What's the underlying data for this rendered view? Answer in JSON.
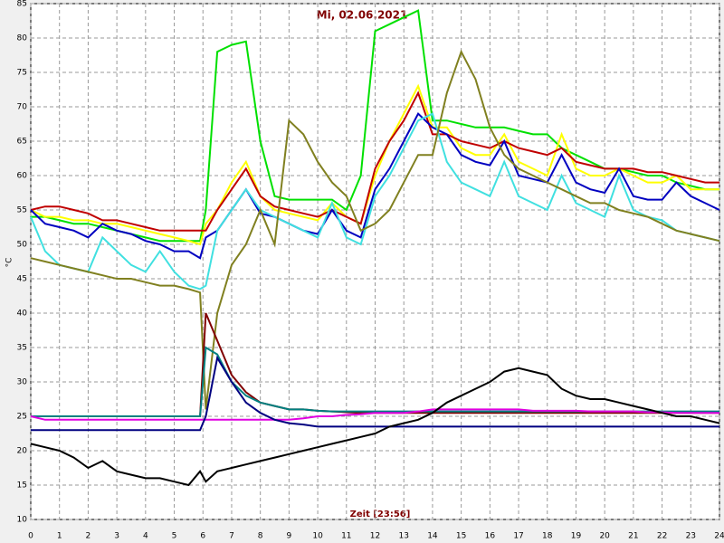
{
  "chart_data": {
    "type": "line",
    "title": "Mi, 02.06.2021",
    "x_label": "Zeit [23:56]",
    "y_label": "°C",
    "x": [
      0,
      0.5,
      1,
      1.5,
      2,
      2.5,
      3,
      3.5,
      4,
      4.5,
      5,
      5.5,
      5.9,
      6.1,
      6.5,
      7,
      7.5,
      8,
      8.5,
      9,
      9.5,
      10,
      10.5,
      11,
      11.5,
      12,
      12.5,
      13,
      13.5,
      14,
      14.5,
      15,
      15.5,
      16,
      16.5,
      17,
      17.5,
      18,
      18.5,
      19,
      19.5,
      20,
      20.5,
      21,
      21.5,
      22,
      22.5,
      23,
      23.5,
      24
    ],
    "xlim": [
      0,
      24
    ],
    "xticks": [
      0,
      1,
      2,
      3,
      4,
      5,
      6,
      7,
      8,
      9,
      10,
      11,
      12,
      13,
      14,
      15,
      16,
      17,
      18,
      19,
      20,
      21,
      22,
      23,
      24
    ],
    "ylim": [
      10,
      85
    ],
    "yticks": [
      10,
      15,
      20,
      25,
      30,
      35,
      40,
      45,
      50,
      55,
      60,
      65,
      70,
      75,
      80,
      85
    ],
    "grid": true,
    "series": [
      {
        "color": "#00e000",
        "values": [
          54,
          54,
          53.5,
          53,
          53,
          52.5,
          52,
          51.5,
          51,
          50.5,
          50.5,
          50.5,
          50.5,
          55,
          78,
          79,
          79.5,
          65,
          57,
          56.5,
          56.5,
          56.5,
          56.5,
          55,
          60,
          81,
          82,
          83,
          84,
          68,
          68,
          67.5,
          67,
          67,
          67,
          66.5,
          66,
          66,
          64,
          63,
          62,
          61,
          61,
          60.5,
          60,
          60,
          59,
          58.5,
          58,
          58
        ]
      },
      {
        "color": "#ffff00",
        "values": [
          55,
          54,
          54,
          53.5,
          53.5,
          53,
          53,
          52.5,
          52,
          51.5,
          51,
          50.5,
          50,
          53,
          55,
          59,
          62,
          57,
          55,
          54.5,
          54,
          53.5,
          56,
          54,
          53,
          60,
          65,
          69,
          73,
          67,
          67,
          64,
          63,
          63,
          66,
          62,
          61,
          60,
          66,
          61,
          60,
          60,
          61,
          60,
          59,
          59,
          60,
          58,
          58,
          58
        ]
      },
      {
        "color": "#c00000",
        "values": [
          55,
          55.5,
          55.5,
          55,
          54.5,
          53.5,
          53.5,
          53,
          52.5,
          52,
          52,
          52,
          52,
          52,
          55,
          58,
          61,
          57,
          55.5,
          55,
          54.5,
          54,
          55,
          54,
          53,
          61,
          65,
          68,
          72,
          66,
          66,
          65,
          64.5,
          64,
          65,
          64,
          63.5,
          63,
          64,
          62,
          61.5,
          61,
          61,
          61,
          60.5,
          60.5,
          60,
          59.5,
          59,
          59
        ]
      },
      {
        "color": "#0000c0",
        "values": [
          55,
          53,
          52.5,
          52,
          51,
          53,
          52,
          51.5,
          50.5,
          50,
          49,
          49,
          48,
          51,
          52,
          55,
          58,
          54.5,
          54,
          53,
          52,
          51.5,
          55,
          52,
          51,
          58,
          61,
          65,
          69,
          67,
          66,
          63,
          62,
          61.5,
          65,
          60,
          59.5,
          59,
          63,
          59,
          58,
          57.5,
          61,
          57,
          56.5,
          56.5,
          59,
          57,
          56,
          55
        ]
      },
      {
        "color": "#40e0e0",
        "values": [
          54,
          49,
          47,
          46.5,
          46,
          51,
          49,
          47,
          46,
          49,
          46,
          44,
          43.5,
          44,
          52,
          55,
          58,
          55,
          54,
          53,
          52,
          51,
          56,
          51,
          50,
          57,
          60,
          64,
          68,
          69,
          62,
          59,
          58,
          57,
          62,
          57,
          56,
          55,
          60,
          56,
          55,
          54,
          60,
          55,
          54,
          53.5,
          52,
          51.5,
          51,
          50.5
        ]
      },
      {
        "color": "#808020",
        "values": [
          48,
          47.5,
          47,
          46.5,
          46,
          45.5,
          45,
          45,
          44.5,
          44,
          44,
          43.5,
          43,
          26,
          40,
          47,
          50,
          55,
          50,
          68,
          66,
          62,
          59,
          57,
          52,
          53,
          55,
          59,
          63,
          63,
          72,
          78,
          74,
          67,
          63,
          61,
          60,
          59,
          58,
          57,
          56,
          56,
          55,
          54.5,
          54,
          53,
          52,
          51.5,
          51,
          50.5
        ]
      },
      {
        "color": "#800000",
        "values": [
          25,
          25,
          25,
          25,
          25,
          25,
          25,
          25,
          25,
          25,
          25,
          25,
          25,
          40,
          36,
          31,
          28.5,
          27,
          26.5,
          26,
          26,
          25.8,
          25.7,
          25.6,
          25.5,
          25.5,
          25.5,
          25.5,
          25.5,
          25.5,
          25.5,
          25.5,
          25.5,
          25.5,
          25.5,
          25.5,
          25.5,
          25.5,
          25.5,
          25.5,
          25.5,
          25.5,
          25.5,
          25.5,
          25.5,
          25.5,
          25.5,
          25.5,
          25.5,
          25.5
        ]
      },
      {
        "color": "#008080",
        "values": [
          25,
          25,
          25,
          25,
          25,
          25,
          25,
          25,
          25,
          25,
          25,
          25,
          25,
          35,
          34,
          30,
          28,
          27,
          26.5,
          26,
          26,
          25.8,
          25.7,
          25.7,
          25.7,
          25.7,
          25.7,
          25.7,
          25.7,
          25.7,
          25.7,
          25.7,
          25.7,
          25.7,
          25.7,
          25.7,
          25.7,
          25.7,
          25.7,
          25.7,
          25.7,
          25.7,
          25.7,
          25.7,
          25.7,
          25.7,
          25.7,
          25.7,
          25.7,
          25.7
        ]
      },
      {
        "color": "#e000e0",
        "values": [
          25,
          24.5,
          24.5,
          24.5,
          24.5,
          24.5,
          24.5,
          24.5,
          24.5,
          24.5,
          24.5,
          24.5,
          24.5,
          24.5,
          24.5,
          24.5,
          24.5,
          24.5,
          24.5,
          24.5,
          24.7,
          25,
          25,
          25.2,
          25.3,
          25.5,
          25.5,
          25.5,
          25.7,
          26,
          26,
          26,
          26,
          26,
          26,
          26,
          25.8,
          25.8,
          25.8,
          25.8,
          25.7,
          25.7,
          25.7,
          25.7,
          25.6,
          25.6,
          25.5,
          25.5,
          25.5,
          25.5
        ]
      },
      {
        "color": "#000080",
        "values": [
          23,
          23,
          23,
          23,
          23,
          23,
          23,
          23,
          23,
          23,
          23,
          23,
          23,
          25,
          33.5,
          30,
          27,
          25.5,
          24.5,
          24,
          23.8,
          23.5,
          23.5,
          23.5,
          23.5,
          23.5,
          23.5,
          23.5,
          23.5,
          23.5,
          23.5,
          23.5,
          23.5,
          23.5,
          23.5,
          23.5,
          23.5,
          23.5,
          23.5,
          23.5,
          23.5,
          23.5,
          23.5,
          23.5,
          23.5,
          23.5,
          23.5,
          23.5,
          23.5,
          23.5
        ]
      },
      {
        "color": "#000000",
        "values": [
          21,
          20.5,
          20,
          19,
          17.5,
          18.5,
          17,
          16.5,
          16,
          16,
          15.5,
          15,
          17,
          15.5,
          17,
          17.5,
          18,
          18.5,
          19,
          19.5,
          20,
          20.5,
          21,
          21.5,
          22,
          22.5,
          23.5,
          24,
          24.5,
          25.5,
          27,
          28,
          29,
          30,
          31.5,
          32,
          31.5,
          31,
          29,
          28,
          27.5,
          27.5,
          27,
          26.5,
          26,
          25.5,
          25,
          25,
          24.5,
          24
        ]
      }
    ]
  }
}
